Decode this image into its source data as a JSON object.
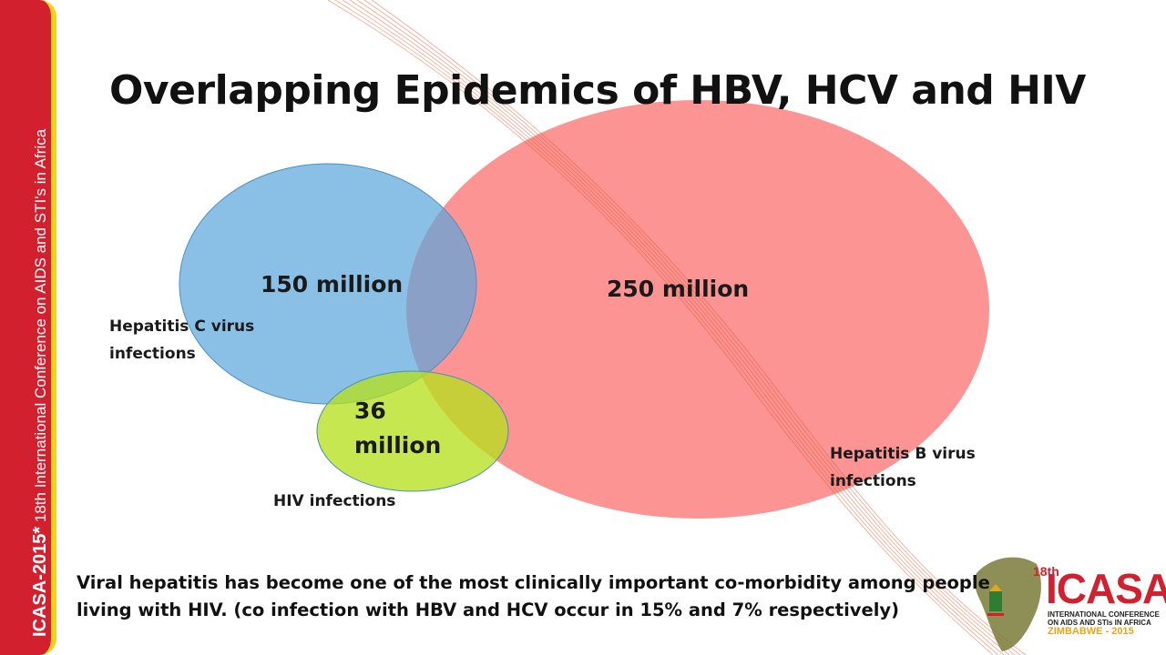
{
  "title": "Overlapping Epidemics of HBV, HCV and HIV",
  "sidebar": {
    "brand": "ICASA-2015*",
    "text": " 18th International Conference on AIDS and STI's in Africa",
    "color": "#d3202f",
    "border_color": "#f2d21a"
  },
  "venn": {
    "hcv": {
      "value": "150 million",
      "label_line1": "Hepatitis C virus",
      "label_line2": "infections",
      "color": "#5aa5dc"
    },
    "hbv": {
      "value": "250 million",
      "label_line1": "Hepatitis B virus",
      "label_line2": "infections",
      "color": "#fa5a5a"
    },
    "hiv": {
      "value_line1": "36",
      "value_line2": "million",
      "label": "HIV infections",
      "color": "#b6e01f"
    }
  },
  "caption": "Viral hepatitis has become one of the most clinically important co-morbidity among people living with HIV. (co infection with HBV and HCV occur in 15% and 7% respectively)",
  "logo": {
    "sup": "18th",
    "name": "ICASA",
    "sub": "INTERNATIONAL CONFERENCE ON AIDS AND STIs IN AFRICA",
    "country": "ZIMBABWE - 2015"
  }
}
